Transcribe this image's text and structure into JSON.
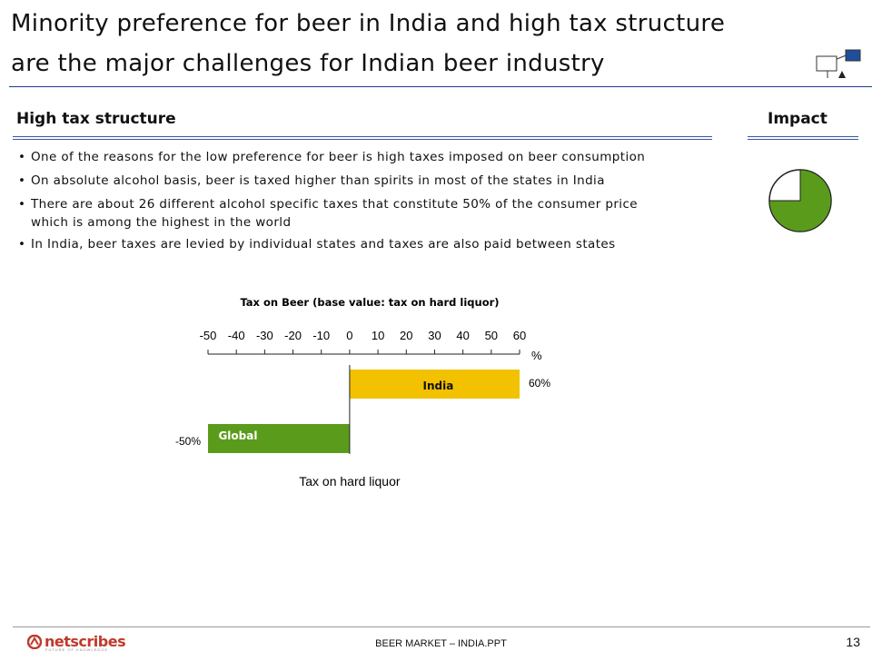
{
  "title": {
    "line1": "Minority preference for beer in India and high tax structure",
    "line2": "are the major challenges for Indian beer industry"
  },
  "section": {
    "heading": "High tax structure",
    "impact_label": "Impact"
  },
  "bullets": [
    {
      "text": "One of the reasons for the low preference for beer is high taxes imposed on beer consumption"
    },
    {
      "text": "On absolute alcohol basis, beer is taxed higher than spirits in most of the states in India"
    },
    {
      "text": "There are about 26 different alcohol specific taxes that constitute 50% of the consumer price",
      "cont": "which is among the highest in the world"
    },
    {
      "text": "In India, beer taxes are levied by individual states and taxes are also paid between states"
    }
  ],
  "impact": {
    "filled_fraction": 0.75,
    "fill_color": "#5b9b1c"
  },
  "chart_data": {
    "type": "bar",
    "orientation": "horizontal",
    "title": "Tax on Beer (base value: tax on hard liquor)",
    "xlabel": "Tax on hard liquor",
    "unit": "%",
    "xlim": [
      -50,
      60
    ],
    "ticks": [
      -50,
      -40,
      -30,
      -20,
      -10,
      0,
      10,
      20,
      30,
      40,
      50,
      60
    ],
    "categories": [
      "India",
      "Global"
    ],
    "values": [
      60,
      -50
    ],
    "value_labels": [
      "60%",
      "-50%"
    ],
    "colors": [
      "#f2c100",
      "#5b9b1c"
    ]
  },
  "footer": {
    "center_text": "BEER MARKET – INDIA.PPT",
    "page_number": "13",
    "logo_text": "netscribes",
    "logo_tagline": "FUTURE OF KNOWLEDGE"
  }
}
